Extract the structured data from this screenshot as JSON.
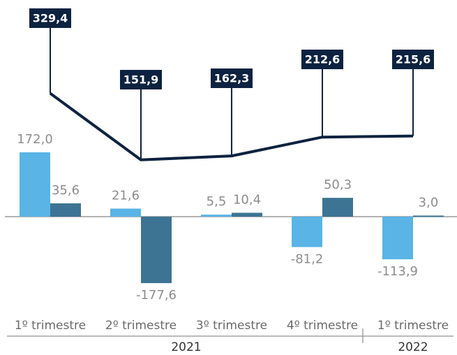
{
  "chart_data": {
    "type": "bar",
    "categories": [
      "1º trimestre",
      "2º trimestre",
      "3º trimestre",
      "4º trimestre",
      "1º trimestre"
    ],
    "groups": [
      {
        "label": "2021",
        "span": 4
      },
      {
        "label": "2022",
        "span": 1
      }
    ],
    "ylim": [
      -224,
      579
    ],
    "series": [
      {
        "type": "bar",
        "color": "#5ab4e6",
        "values": [
          172.0,
          21.6,
          5.5,
          -81.2,
          -113.9
        ],
        "value_labels": [
          "172,0",
          "21,6",
          "5,5",
          "-81,2",
          "-113,9"
        ]
      },
      {
        "type": "bar",
        "color": "#3d7494",
        "values": [
          35.6,
          -177.6,
          10.4,
          50.3,
          3.0
        ],
        "value_labels": [
          "35,6",
          "-177,6",
          "10,4",
          "50,3",
          "3,0"
        ]
      },
      {
        "type": "line",
        "color": "#0d2240",
        "values": [
          329.4,
          151.9,
          162.3,
          212.6,
          215.6
        ],
        "value_labels": [
          "329,4",
          "151,9",
          "162,3",
          "212,6",
          "215,6"
        ]
      }
    ]
  }
}
